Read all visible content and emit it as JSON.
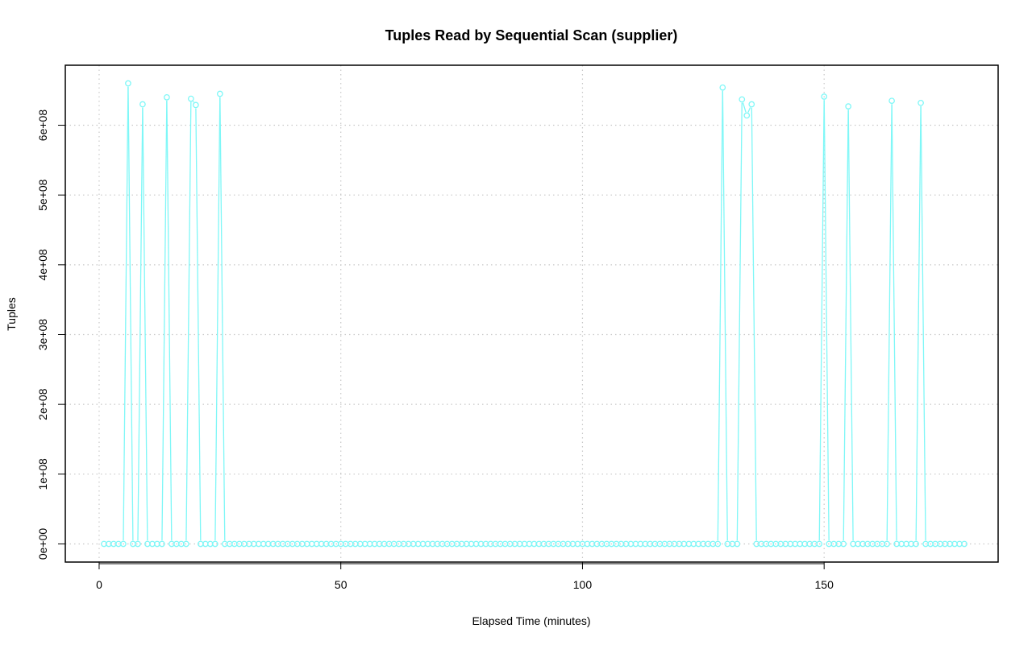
{
  "chart_data": {
    "type": "line",
    "title": "Tuples Read by Sequential Scan (supplier)",
    "xlabel": "Elapsed Time (minutes)",
    "ylabel": "Tuples",
    "xlim": [
      -7,
      186
    ],
    "ylim": [
      -26000000,
      686000000
    ],
    "x_ticks": [
      0,
      50,
      100,
      150
    ],
    "x_tick_labels": [
      "0",
      "50",
      "100",
      "150"
    ],
    "y_ticks": [
      0,
      100000000,
      200000000,
      300000000,
      400000000,
      500000000,
      600000000
    ],
    "y_tick_labels": [
      "0e+00",
      "1e+08",
      "2e+08",
      "3e+08",
      "4e+08",
      "5e+08",
      "6e+08"
    ],
    "grid": true,
    "grid_style": "dotted",
    "series_color": "#7ff7f7",
    "x_start": 1,
    "x_end": 179,
    "baseline": 0,
    "spikes": [
      {
        "x": 6,
        "y": 660000000
      },
      {
        "x": 9,
        "y": 630000000
      },
      {
        "x": 14,
        "y": 640000000
      },
      {
        "x": 19,
        "y": 638000000
      },
      {
        "x": 20,
        "y": 629000000
      },
      {
        "x": 25,
        "y": 645000000
      },
      {
        "x": 129,
        "y": 654000000
      },
      {
        "x": 133,
        "y": 637000000
      },
      {
        "x": 134,
        "y": 614000000
      },
      {
        "x": 135,
        "y": 630000000
      },
      {
        "x": 150,
        "y": 641000000
      },
      {
        "x": 155,
        "y": 627000000
      },
      {
        "x": 164,
        "y": 635000000
      },
      {
        "x": 170,
        "y": 632000000
      }
    ]
  }
}
